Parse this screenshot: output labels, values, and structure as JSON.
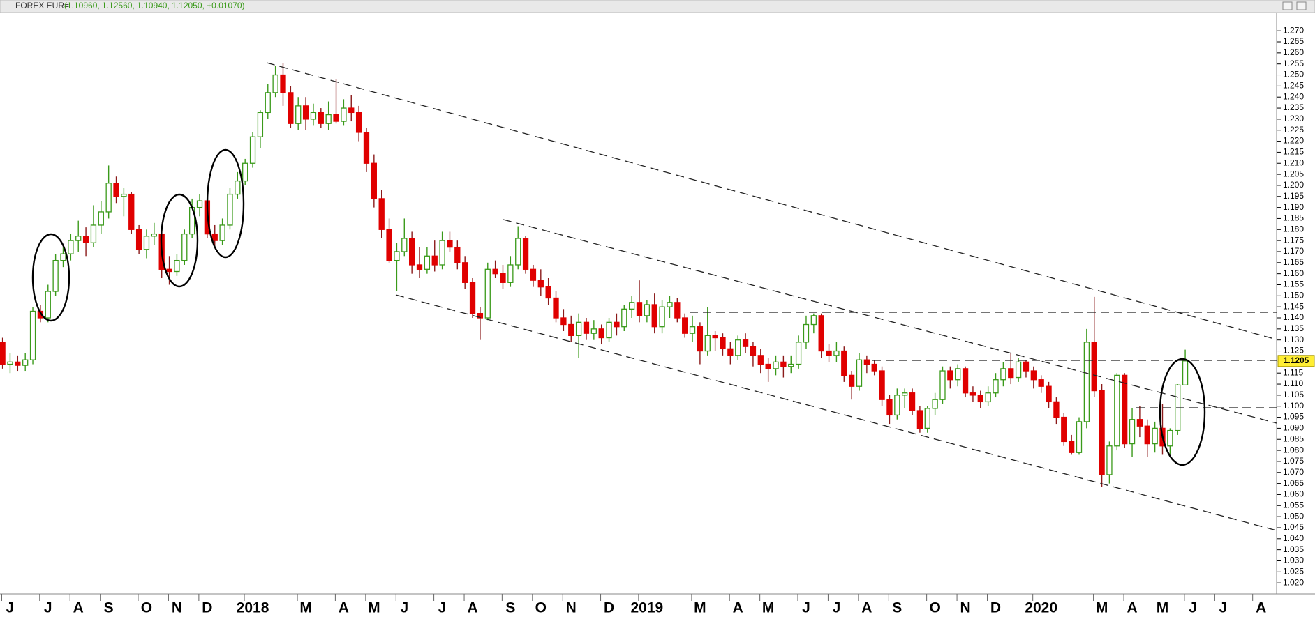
{
  "chart_data": {
    "type": "candlestick",
    "title": "FOREX EUR=",
    "subtitle": "(1.10960, 1.12560, 1.10940, 1.12050, +0.01070)",
    "up_color": "#3a9a1a",
    "down_color": "#e00000",
    "down_wick_color": "#8b1a1a",
    "last_price": {
      "value": 1.1205,
      "label": "1.1205"
    },
    "ylim": [
      1.015,
      1.277
    ],
    "yticks": [
      {
        "value": 1.02,
        "label": "1.020"
      },
      {
        "value": 1.025,
        "label": "1.025"
      },
      {
        "value": 1.03,
        "label": "1.030"
      },
      {
        "value": 1.035,
        "label": "1.035"
      },
      {
        "value": 1.04,
        "label": "1.040"
      },
      {
        "value": 1.045,
        "label": "1.045"
      },
      {
        "value": 1.05,
        "label": "1.050"
      },
      {
        "value": 1.055,
        "label": "1.055"
      },
      {
        "value": 1.06,
        "label": "1.060"
      },
      {
        "value": 1.065,
        "label": "1.065"
      },
      {
        "value": 1.07,
        "label": "1.070"
      },
      {
        "value": 1.075,
        "label": "1.075"
      },
      {
        "value": 1.08,
        "label": "1.080"
      },
      {
        "value": 1.085,
        "label": "1.085"
      },
      {
        "value": 1.09,
        "label": "1.090"
      },
      {
        "value": 1.095,
        "label": "1.095"
      },
      {
        "value": 1.1,
        "label": "1.100"
      },
      {
        "value": 1.105,
        "label": "1.105"
      },
      {
        "value": 1.11,
        "label": "1.110"
      },
      {
        "value": 1.115,
        "label": "1.115"
      },
      {
        "value": 1.12,
        "label": "1.120"
      },
      {
        "value": 1.125,
        "label": "1.125"
      },
      {
        "value": 1.13,
        "label": "1.130"
      },
      {
        "value": 1.135,
        "label": "1.135"
      },
      {
        "value": 1.14,
        "label": "1.140"
      },
      {
        "value": 1.145,
        "label": "1.145"
      },
      {
        "value": 1.15,
        "label": "1.150"
      },
      {
        "value": 1.155,
        "label": "1.155"
      },
      {
        "value": 1.16,
        "label": "1.160"
      },
      {
        "value": 1.165,
        "label": "1.165"
      },
      {
        "value": 1.17,
        "label": "1.170"
      },
      {
        "value": 1.175,
        "label": "1.175"
      },
      {
        "value": 1.18,
        "label": "1.180"
      },
      {
        "value": 1.185,
        "label": "1.185"
      },
      {
        "value": 1.19,
        "label": "1.190"
      },
      {
        "value": 1.195,
        "label": "1.195"
      },
      {
        "value": 1.2,
        "label": "1.200"
      },
      {
        "value": 1.205,
        "label": "1.205"
      },
      {
        "value": 1.21,
        "label": "1.210"
      },
      {
        "value": 1.215,
        "label": "1.215"
      },
      {
        "value": 1.22,
        "label": "1.220"
      },
      {
        "value": 1.225,
        "label": "1.225"
      },
      {
        "value": 1.23,
        "label": "1.230"
      },
      {
        "value": 1.235,
        "label": "1.235"
      },
      {
        "value": 1.24,
        "label": "1.240"
      },
      {
        "value": 1.245,
        "label": "1.245"
      },
      {
        "value": 1.25,
        "label": "1.250"
      },
      {
        "value": 1.255,
        "label": "1.255"
      },
      {
        "value": 1.26,
        "label": "1.260"
      },
      {
        "value": 1.265,
        "label": "1.265"
      },
      {
        "value": 1.27,
        "label": "1.270"
      }
    ],
    "categories": [
      null,
      "J",
      null,
      null,
      null,
      null,
      "J",
      null,
      null,
      null,
      "A",
      null,
      null,
      null,
      "S",
      null,
      null,
      null,
      null,
      "O",
      null,
      null,
      null,
      "N",
      null,
      null,
      null,
      "D",
      null,
      null,
      null,
      null,
      null,
      "2018",
      null,
      null,
      null,
      null,
      null,
      null,
      "M",
      null,
      null,
      null,
      null,
      "A",
      null,
      null,
      null,
      "M",
      null,
      null,
      null,
      "J",
      null,
      null,
      null,
      null,
      "J",
      null,
      null,
      null,
      "A",
      null,
      null,
      null,
      null,
      "S",
      null,
      null,
      null,
      "O",
      null,
      null,
      null,
      "N",
      null,
      null,
      null,
      null,
      "D",
      null,
      null,
      null,
      null,
      "2019",
      null,
      null,
      null,
      null,
      null,
      null,
      "M",
      null,
      null,
      null,
      null,
      "A",
      null,
      null,
      null,
      "M",
      null,
      null,
      null,
      null,
      "J",
      null,
      null,
      null,
      "J",
      null,
      null,
      null,
      "A",
      null,
      null,
      null,
      "S",
      null,
      null,
      null,
      null,
      "O",
      null,
      null,
      null,
      "N",
      null,
      null,
      null,
      "D",
      null,
      null,
      null,
      null,
      null,
      "2020",
      null,
      null,
      null,
      null,
      null,
      null,
      null,
      "M",
      null,
      null,
      null,
      "A",
      null,
      null,
      null,
      "M",
      null,
      null,
      null,
      "J",
      null,
      null,
      null,
      "J",
      null,
      null,
      null,
      null,
      "A"
    ],
    "ohlc": [
      [
        1.129,
        1.131,
        1.117,
        1.119
      ],
      [
        1.119,
        1.124,
        1.115,
        1.12
      ],
      [
        1.12,
        1.123,
        1.116,
        1.1185
      ],
      [
        1.1185,
        1.124,
        1.116,
        1.121
      ],
      [
        1.121,
        1.145,
        1.119,
        1.143
      ],
      [
        1.143,
        1.146,
        1.138,
        1.14
      ],
      [
        1.14,
        1.155,
        1.138,
        1.152
      ],
      [
        1.152,
        1.169,
        1.15,
        1.166
      ],
      [
        1.166,
        1.172,
        1.163,
        1.169
      ],
      [
        1.169,
        1.178,
        1.166,
        1.175
      ],
      [
        1.175,
        1.184,
        1.17,
        1.177
      ],
      [
        1.177,
        1.181,
        1.168,
        1.174
      ],
      [
        1.174,
        1.191,
        1.172,
        1.182
      ],
      [
        1.182,
        1.193,
        1.178,
        1.188
      ],
      [
        1.188,
        1.209,
        1.185,
        1.201
      ],
      [
        1.201,
        1.204,
        1.192,
        1.195
      ],
      [
        1.195,
        1.199,
        1.186,
        1.196
      ],
      [
        1.196,
        1.197,
        1.178,
        1.18
      ],
      [
        1.18,
        1.182,
        1.169,
        1.171
      ],
      [
        1.171,
        1.18,
        1.167,
        1.177
      ],
      [
        1.177,
        1.183,
        1.173,
        1.178
      ],
      [
        1.178,
        1.18,
        1.158,
        1.162
      ],
      [
        1.162,
        1.168,
        1.155,
        1.161
      ],
      [
        1.161,
        1.169,
        1.159,
        1.166
      ],
      [
        1.166,
        1.18,
        1.164,
        1.178
      ],
      [
        1.178,
        1.194,
        1.176,
        1.19
      ],
      [
        1.19,
        1.196,
        1.186,
        1.193
      ],
      [
        1.193,
        1.194,
        1.176,
        1.178
      ],
      [
        1.178,
        1.182,
        1.172,
        1.175
      ],
      [
        1.175,
        1.185,
        1.173,
        1.182
      ],
      [
        1.182,
        1.199,
        1.18,
        1.196
      ],
      [
        1.196,
        1.206,
        1.194,
        1.202
      ],
      [
        1.202,
        1.212,
        1.2,
        1.21
      ],
      [
        1.21,
        1.224,
        1.208,
        1.222
      ],
      [
        1.222,
        1.234,
        1.217,
        1.233
      ],
      [
        1.233,
        1.246,
        1.23,
        1.242
      ],
      [
        1.242,
        1.254,
        1.24,
        1.25
      ],
      [
        1.25,
        1.2555,
        1.236,
        1.242
      ],
      [
        1.242,
        1.245,
        1.226,
        1.228
      ],
      [
        1.228,
        1.24,
        1.225,
        1.236
      ],
      [
        1.236,
        1.24,
        1.225,
        1.23
      ],
      [
        1.23,
        1.237,
        1.227,
        1.233
      ],
      [
        1.233,
        1.235,
        1.226,
        1.228
      ],
      [
        1.228,
        1.238,
        1.225,
        1.232
      ],
      [
        1.232,
        1.248,
        1.228,
        1.229
      ],
      [
        1.229,
        1.239,
        1.227,
        1.235
      ],
      [
        1.235,
        1.241,
        1.229,
        1.233
      ],
      [
        1.233,
        1.236,
        1.22,
        1.224
      ],
      [
        1.224,
        1.226,
        1.206,
        1.21
      ],
      [
        1.21,
        1.214,
        1.19,
        1.194
      ],
      [
        1.194,
        1.198,
        1.176,
        1.18
      ],
      [
        1.18,
        1.185,
        1.165,
        1.166
      ],
      [
        1.166,
        1.174,
        1.152,
        1.17
      ],
      [
        1.17,
        1.185,
        1.168,
        1.176
      ],
      [
        1.176,
        1.179,
        1.16,
        1.164
      ],
      [
        1.164,
        1.172,
        1.158,
        1.162
      ],
      [
        1.162,
        1.172,
        1.16,
        1.168
      ],
      [
        1.168,
        1.175,
        1.161,
        1.164
      ],
      [
        1.164,
        1.179,
        1.162,
        1.175
      ],
      [
        1.175,
        1.179,
        1.17,
        1.172
      ],
      [
        1.172,
        1.175,
        1.162,
        1.165
      ],
      [
        1.165,
        1.168,
        1.153,
        1.156
      ],
      [
        1.156,
        1.158,
        1.14,
        1.142
      ],
      [
        1.142,
        1.145,
        1.13,
        1.14
      ],
      [
        1.14,
        1.165,
        1.139,
        1.162
      ],
      [
        1.162,
        1.166,
        1.158,
        1.16
      ],
      [
        1.16,
        1.164,
        1.153,
        1.156
      ],
      [
        1.156,
        1.168,
        1.154,
        1.164
      ],
      [
        1.164,
        1.1815,
        1.162,
        1.176
      ],
      [
        1.176,
        1.177,
        1.16,
        1.162
      ],
      [
        1.162,
        1.164,
        1.154,
        1.157
      ],
      [
        1.157,
        1.162,
        1.15,
        1.154
      ],
      [
        1.154,
        1.158,
        1.146,
        1.149
      ],
      [
        1.149,
        1.152,
        1.138,
        1.14
      ],
      [
        1.14,
        1.144,
        1.134,
        1.137
      ],
      [
        1.137,
        1.141,
        1.129,
        1.132
      ],
      [
        1.132,
        1.142,
        1.122,
        1.138
      ],
      [
        1.138,
        1.14,
        1.13,
        1.133
      ],
      [
        1.133,
        1.139,
        1.13,
        1.135
      ],
      [
        1.135,
        1.137,
        1.128,
        1.131
      ],
      [
        1.131,
        1.14,
        1.129,
        1.138
      ],
      [
        1.138,
        1.142,
        1.132,
        1.136
      ],
      [
        1.136,
        1.146,
        1.134,
        1.144
      ],
      [
        1.144,
        1.15,
        1.14,
        1.147
      ],
      [
        1.147,
        1.157,
        1.138,
        1.141
      ],
      [
        1.141,
        1.148,
        1.138,
        1.146
      ],
      [
        1.146,
        1.151,
        1.133,
        1.136
      ],
      [
        1.136,
        1.148,
        1.133,
        1.145
      ],
      [
        1.145,
        1.15,
        1.14,
        1.147
      ],
      [
        1.147,
        1.149,
        1.138,
        1.14
      ],
      [
        1.14,
        1.142,
        1.131,
        1.133
      ],
      [
        1.133,
        1.141,
        1.129,
        1.136
      ],
      [
        1.136,
        1.138,
        1.119,
        1.125
      ],
      [
        1.125,
        1.145,
        1.123,
        1.132
      ],
      [
        1.132,
        1.134,
        1.125,
        1.131
      ],
      [
        1.131,
        1.133,
        1.123,
        1.126
      ],
      [
        1.126,
        1.129,
        1.119,
        1.123
      ],
      [
        1.123,
        1.132,
        1.121,
        1.13
      ],
      [
        1.13,
        1.133,
        1.124,
        1.127
      ],
      [
        1.127,
        1.129,
        1.118,
        1.123
      ],
      [
        1.123,
        1.126,
        1.115,
        1.119
      ],
      [
        1.119,
        1.122,
        1.111,
        1.117
      ],
      [
        1.117,
        1.123,
        1.114,
        1.12
      ],
      [
        1.12,
        1.123,
        1.113,
        1.118
      ],
      [
        1.118,
        1.123,
        1.115,
        1.119
      ],
      [
        1.119,
        1.132,
        1.117,
        1.129
      ],
      [
        1.129,
        1.141,
        1.126,
        1.137
      ],
      [
        1.137,
        1.142,
        1.133,
        1.141
      ],
      [
        1.141,
        1.142,
        1.122,
        1.125
      ],
      [
        1.125,
        1.128,
        1.12,
        1.123
      ],
      [
        1.123,
        1.129,
        1.12,
        1.125
      ],
      [
        1.125,
        1.127,
        1.111,
        1.114
      ],
      [
        1.114,
        1.116,
        1.103,
        1.109
      ],
      [
        1.109,
        1.124,
        1.107,
        1.121
      ],
      [
        1.121,
        1.123,
        1.115,
        1.119
      ],
      [
        1.119,
        1.121,
        1.114,
        1.116
      ],
      [
        1.116,
        1.118,
        1.1,
        1.103
      ],
      [
        1.103,
        1.105,
        1.092,
        1.096
      ],
      [
        1.096,
        1.108,
        1.094,
        1.105
      ],
      [
        1.105,
        1.108,
        1.099,
        1.106
      ],
      [
        1.106,
        1.108,
        1.096,
        1.098
      ],
      [
        1.098,
        1.1,
        1.088,
        1.09
      ],
      [
        1.09,
        1.1,
        1.088,
        1.099
      ],
      [
        1.099,
        1.106,
        1.096,
        1.103
      ],
      [
        1.103,
        1.118,
        1.101,
        1.116
      ],
      [
        1.116,
        1.118,
        1.108,
        1.112
      ],
      [
        1.112,
        1.119,
        1.109,
        1.117
      ],
      [
        1.117,
        1.118,
        1.104,
        1.106
      ],
      [
        1.106,
        1.109,
        1.102,
        1.105
      ],
      [
        1.105,
        1.107,
        1.099,
        1.102
      ],
      [
        1.102,
        1.109,
        1.1,
        1.106
      ],
      [
        1.106,
        1.115,
        1.104,
        1.112
      ],
      [
        1.112,
        1.12,
        1.109,
        1.117
      ],
      [
        1.117,
        1.124,
        1.11,
        1.113
      ],
      [
        1.113,
        1.122,
        1.111,
        1.12
      ],
      [
        1.12,
        1.121,
        1.113,
        1.116
      ],
      [
        1.116,
        1.118,
        1.108,
        1.112
      ],
      [
        1.112,
        1.114,
        1.106,
        1.109
      ],
      [
        1.109,
        1.111,
        1.099,
        1.102
      ],
      [
        1.102,
        1.104,
        1.092,
        1.095
      ],
      [
        1.095,
        1.097,
        1.082,
        1.084
      ],
      [
        1.084,
        1.087,
        1.078,
        1.079
      ],
      [
        1.079,
        1.095,
        1.078,
        1.093
      ],
      [
        1.093,
        1.135,
        1.09,
        1.129
      ],
      [
        1.129,
        1.1495,
        1.104,
        1.107
      ],
      [
        1.107,
        1.11,
        1.0636,
        1.069
      ],
      [
        1.069,
        1.084,
        1.065,
        1.082
      ],
      [
        1.082,
        1.115,
        1.08,
        1.114
      ],
      [
        1.114,
        1.115,
        1.081,
        1.083
      ],
      [
        1.083,
        1.099,
        1.077,
        1.094
      ],
      [
        1.094,
        1.1,
        1.086,
        1.091
      ],
      [
        1.091,
        1.094,
        1.077,
        1.083
      ],
      [
        1.083,
        1.093,
        1.079,
        1.09
      ],
      [
        1.09,
        1.101,
        1.078,
        1.082
      ],
      [
        1.082,
        1.09,
        1.078,
        1.089
      ],
      [
        1.089,
        1.11,
        1.087,
        1.1096
      ],
      [
        1.1096,
        1.1256,
        1.1094,
        1.1205
      ],
      null,
      null,
      null,
      null,
      null,
      null,
      null,
      null,
      null,
      null
    ]
  }
}
